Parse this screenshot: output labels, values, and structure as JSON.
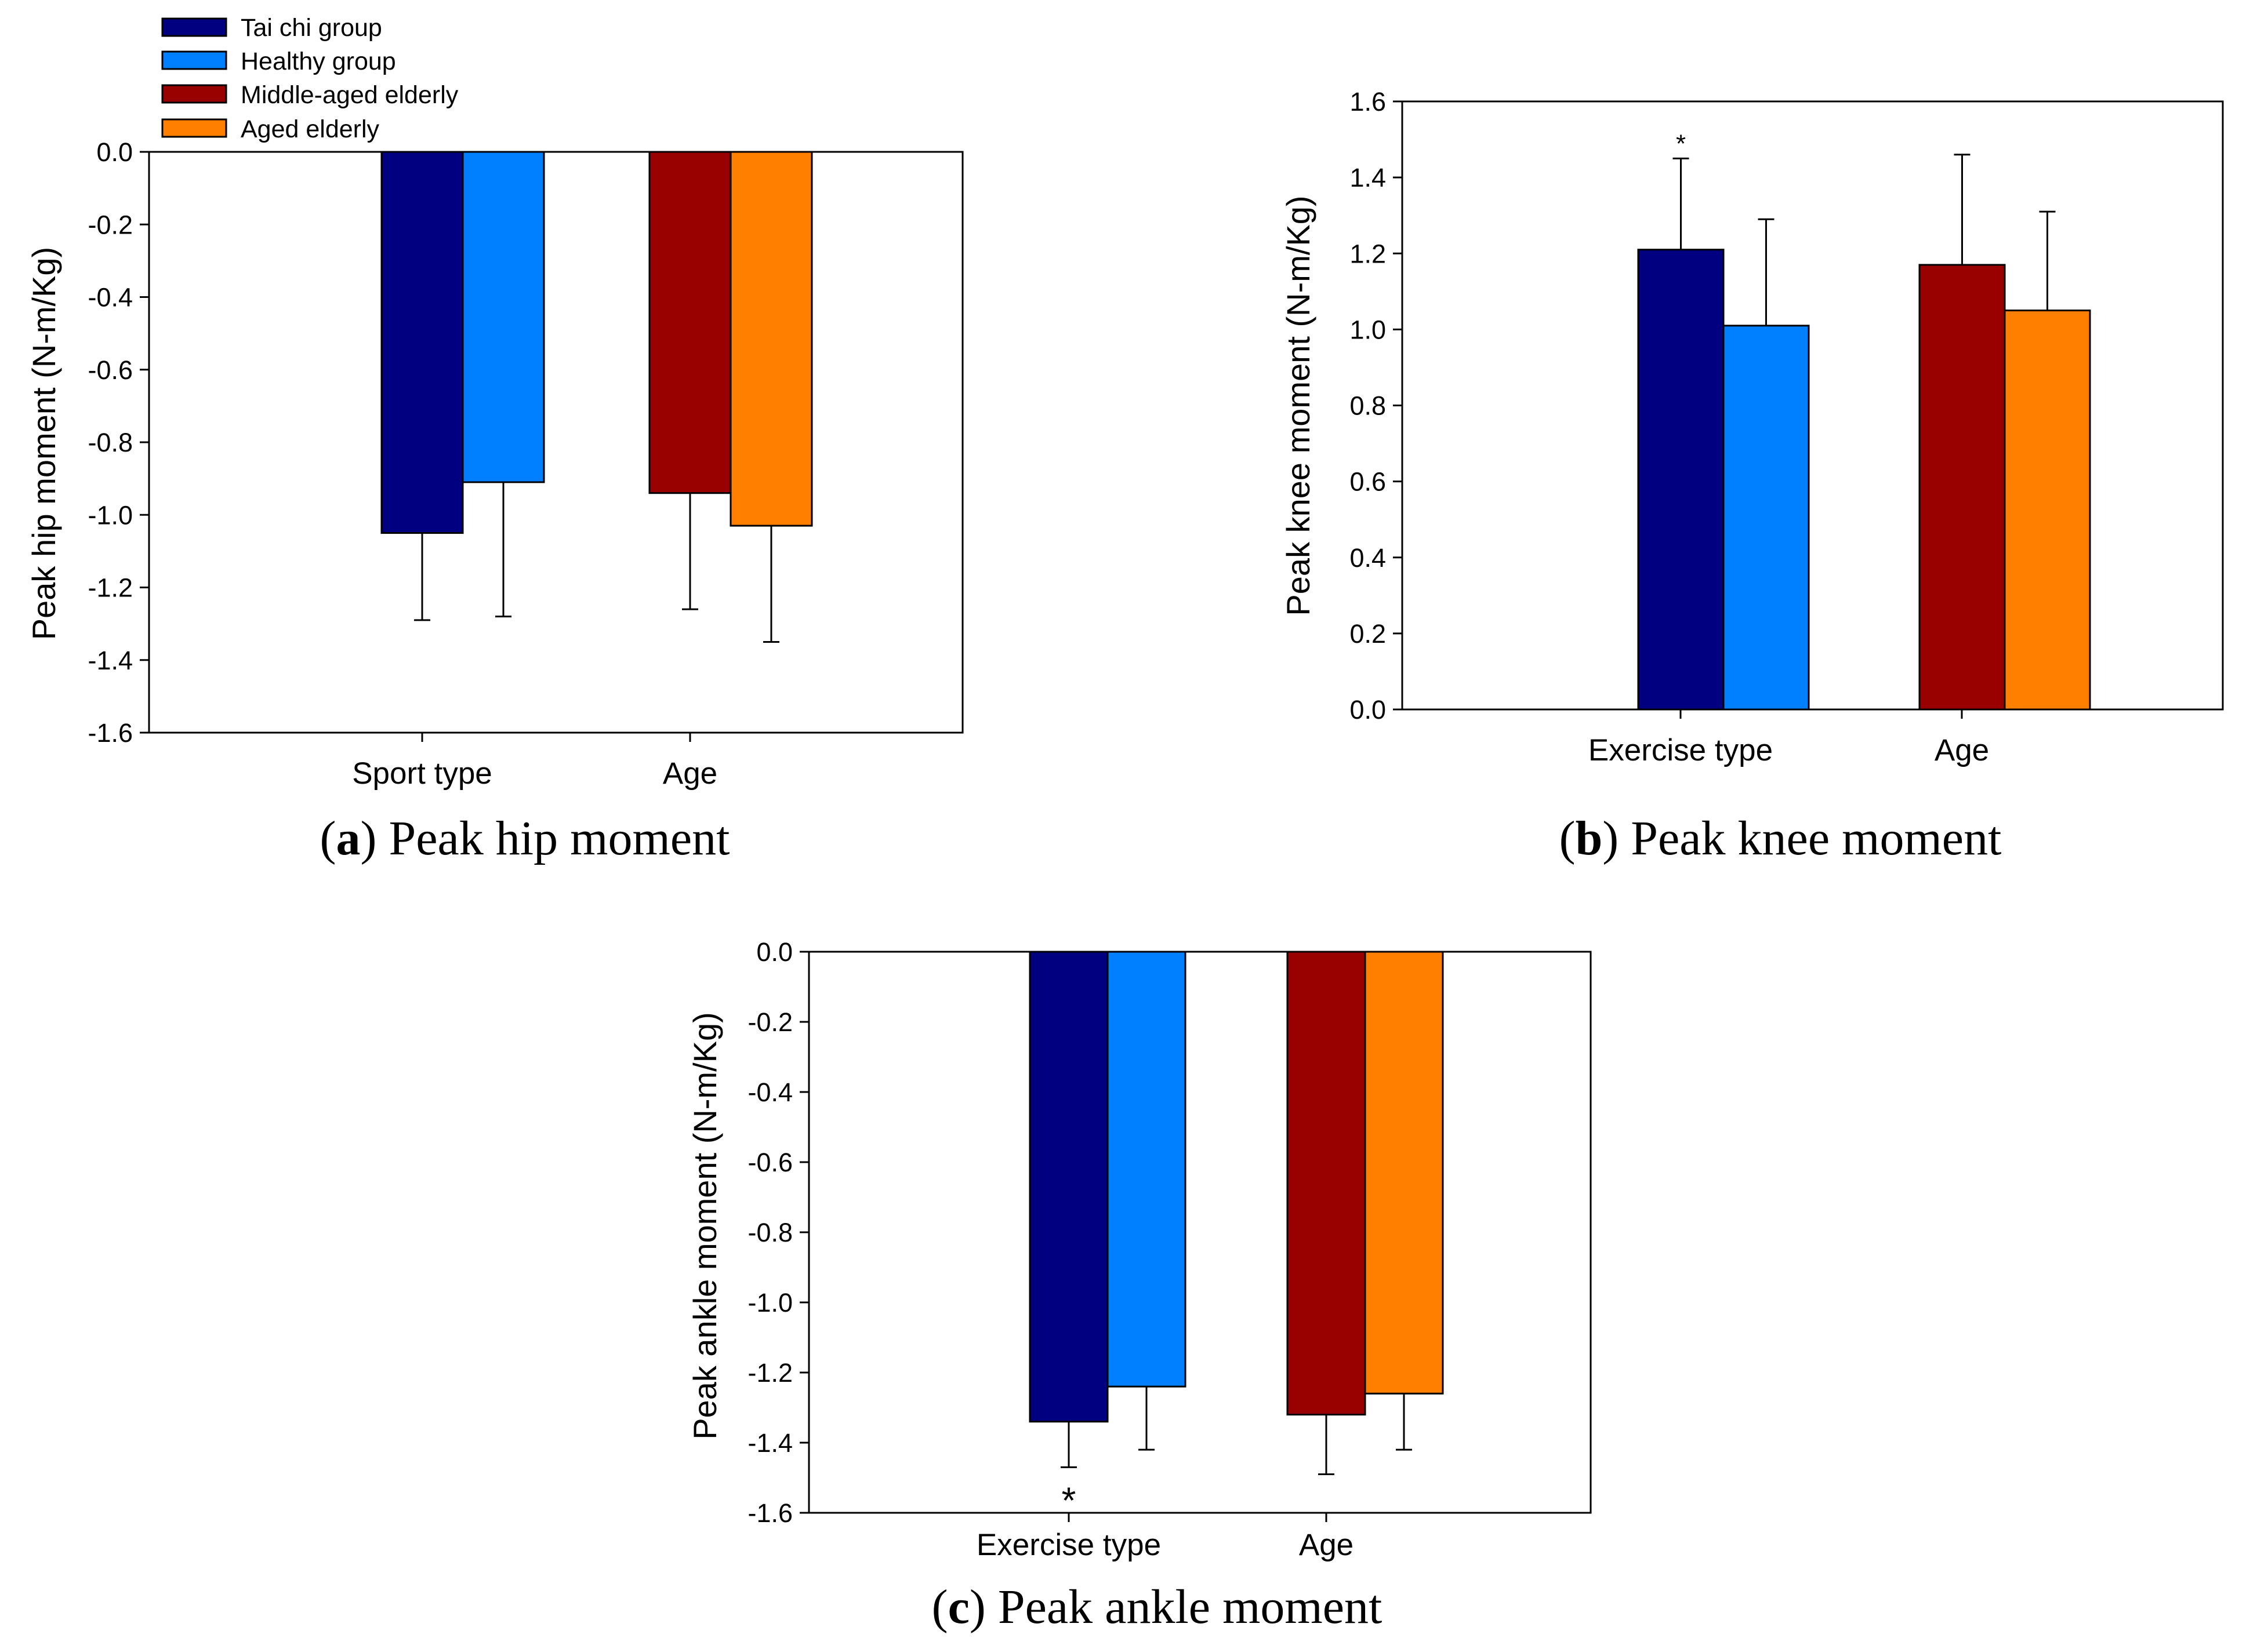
{
  "legend": [
    {
      "label": "Tai chi group",
      "color": "#000080"
    },
    {
      "label": "Healthy group",
      "color": "#0080FF"
    },
    {
      "label": "Middle-aged elderly",
      "color": "#990000"
    },
    {
      "label": "Aged elderly",
      "color": "#FF8000"
    }
  ],
  "chart_data": [
    {
      "type": "bar",
      "panel": "a",
      "caption_letter": "a",
      "caption_text": "Peak hip moment",
      "ylabel": "Peak hip moment (N-m/Kg)",
      "ylim": [
        -1.6,
        0.0
      ],
      "yticks": [
        0.0,
        -0.2,
        -0.4,
        -0.6,
        -0.8,
        -1.0,
        -1.2,
        -1.4,
        -1.6
      ],
      "categories": [
        "Sport type",
        "Age"
      ],
      "series": [
        {
          "name": "Tai chi group",
          "category": "Sport type",
          "value": -1.05,
          "error": 0.24
        },
        {
          "name": "Healthy group",
          "category": "Sport type",
          "value": -0.91,
          "error": 0.37
        },
        {
          "name": "Middle-aged elderly",
          "category": "Age",
          "value": -0.94,
          "error": 0.32
        },
        {
          "name": "Aged elderly",
          "category": "Age",
          "value": -1.03,
          "error": 0.32
        }
      ],
      "annotations": []
    },
    {
      "type": "bar",
      "panel": "b",
      "caption_letter": "b",
      "caption_text": "Peak knee moment",
      "ylabel": "Peak knee moment (N-m/Kg)",
      "ylim": [
        0.0,
        1.6
      ],
      "yticks": [
        0.0,
        0.2,
        0.4,
        0.6,
        0.8,
        1.0,
        1.2,
        1.4,
        1.6
      ],
      "categories": [
        "Exercise type",
        "Age"
      ],
      "series": [
        {
          "name": "Tai chi group",
          "category": "Exercise type",
          "value": 1.21,
          "error": 0.24
        },
        {
          "name": "Healthy group",
          "category": "Exercise type",
          "value": 1.01,
          "error": 0.28
        },
        {
          "name": "Middle-aged elderly",
          "category": "Age",
          "value": 1.17,
          "error": 0.29
        },
        {
          "name": "Aged elderly",
          "category": "Age",
          "value": 1.05,
          "error": 0.26
        }
      ],
      "annotations": [
        {
          "text": "*",
          "bar": 0
        }
      ]
    },
    {
      "type": "bar",
      "panel": "c",
      "caption_letter": "c",
      "caption_text": "Peak ankle moment",
      "ylabel": "Peak ankle moment (N-m/Kg)",
      "ylim": [
        -1.6,
        0.0
      ],
      "yticks": [
        0.0,
        -0.2,
        -0.4,
        -0.6,
        -0.8,
        -1.0,
        -1.2,
        -1.4,
        -1.6
      ],
      "categories": [
        "Exercise type",
        "Age"
      ],
      "series": [
        {
          "name": "Tai chi group",
          "category": "Exercise type",
          "value": -1.34,
          "error": 0.13
        },
        {
          "name": "Healthy group",
          "category": "Exercise type",
          "value": -1.24,
          "error": 0.18
        },
        {
          "name": "Middle-aged elderly",
          "category": "Age",
          "value": -1.32,
          "error": 0.17
        },
        {
          "name": "Aged elderly",
          "category": "Age",
          "value": -1.26,
          "error": 0.16
        }
      ],
      "annotations": [
        {
          "text": "*",
          "bar": 0
        }
      ]
    }
  ]
}
